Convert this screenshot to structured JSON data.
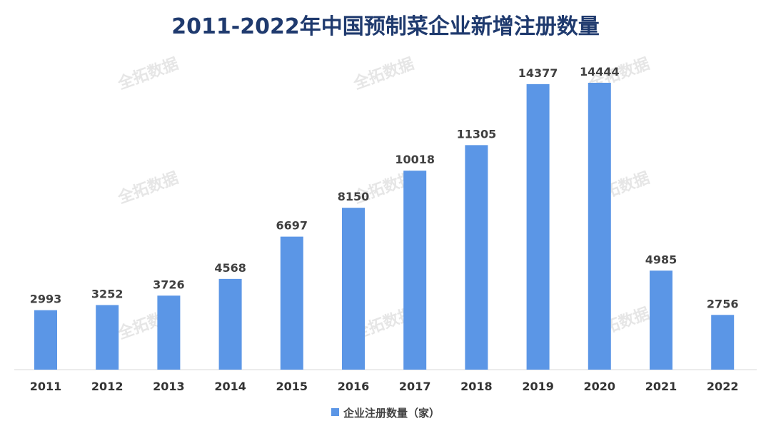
{
  "chart_data": {
    "type": "bar",
    "title": "2011-2022年中国预制菜企业新增注册数量",
    "categories": [
      "2011",
      "2012",
      "2013",
      "2014",
      "2015",
      "2016",
      "2017",
      "2018",
      "2019",
      "2020",
      "2021",
      "2022"
    ],
    "series": [
      {
        "name": "企业注册数量（家）",
        "values": [
          2993,
          3252,
          3726,
          4568,
          6697,
          8150,
          10018,
          11305,
          14377,
          14444,
          4985,
          2756
        ]
      }
    ],
    "xlabel": "",
    "ylabel": "",
    "ylim": [
      0,
      16000
    ],
    "grid": false,
    "legend": "bottom-center",
    "bar_color": "#5B96E6",
    "watermark": "全拓数据"
  }
}
